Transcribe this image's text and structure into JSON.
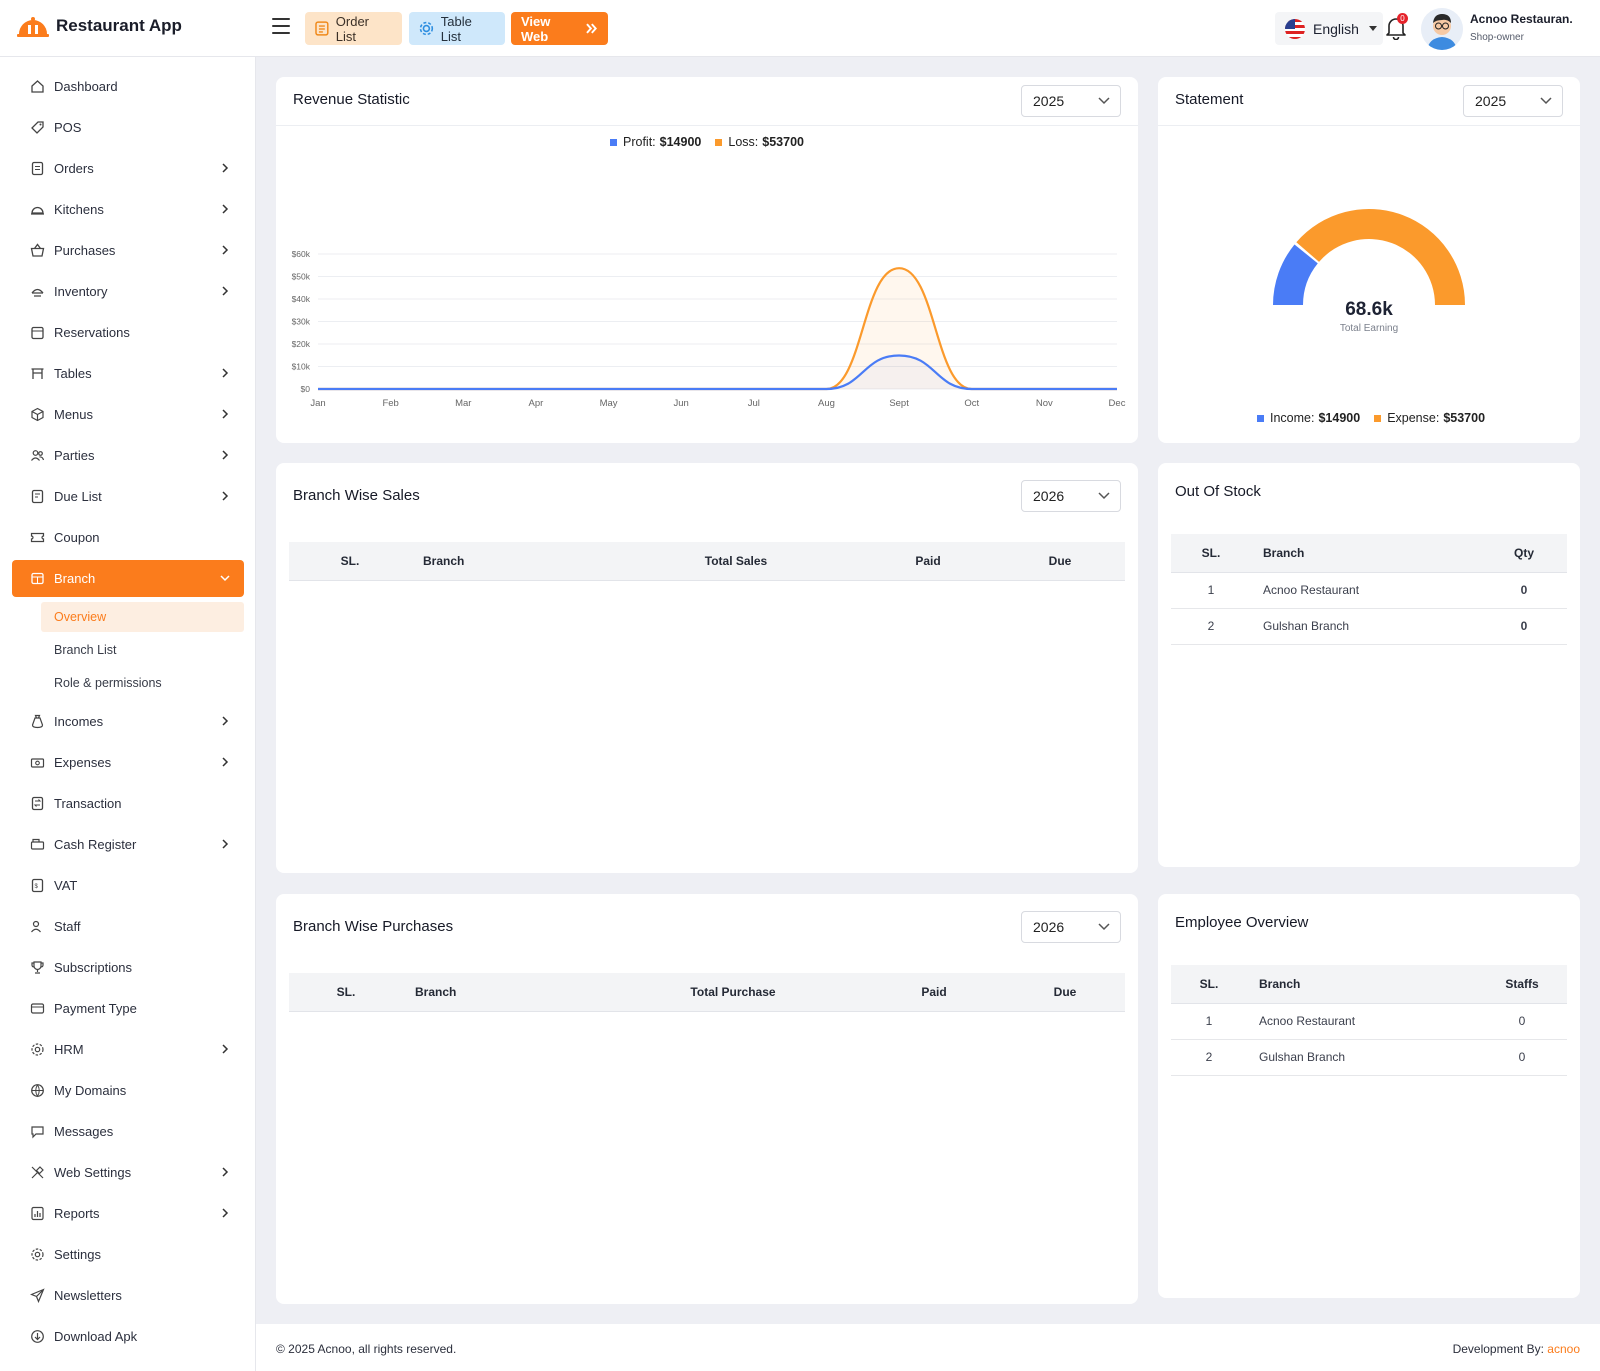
{
  "app": {
    "name": "Restaurant App"
  },
  "header": {
    "order_list": "Order List",
    "table_list": "Table List",
    "view_web": "View Web",
    "language": "English",
    "notification_count": "0",
    "user_name": "Acnoo Restauran.",
    "user_role": "Shop-owner"
  },
  "sidebar": {
    "items": [
      {
        "label": "Dashboard",
        "icon": "dashboard-icon",
        "chevron": false
      },
      {
        "label": "POS",
        "icon": "pos-icon",
        "chevron": false
      },
      {
        "label": "Orders",
        "icon": "orders-icon",
        "chevron": true
      },
      {
        "label": "Kitchens",
        "icon": "kitchen-icon",
        "chevron": true
      },
      {
        "label": "Purchases",
        "icon": "basket-icon",
        "chevron": true
      },
      {
        "label": "Inventory",
        "icon": "inventory-icon",
        "chevron": true
      },
      {
        "label": "Reservations",
        "icon": "calendar-icon",
        "chevron": false
      },
      {
        "label": "Tables",
        "icon": "table-icon",
        "chevron": true
      },
      {
        "label": "Menus",
        "icon": "box-icon",
        "chevron": true
      },
      {
        "label": "Parties",
        "icon": "users-icon",
        "chevron": true
      },
      {
        "label": "Due List",
        "icon": "list-icon",
        "chevron": true
      },
      {
        "label": "Coupon",
        "icon": "coupon-icon",
        "chevron": false
      },
      {
        "label": "Branch",
        "icon": "branch-icon",
        "chevron": true,
        "active": true
      },
      {
        "label": "Incomes",
        "icon": "money-bag-icon",
        "chevron": true
      },
      {
        "label": "Expenses",
        "icon": "cash-icon",
        "chevron": true
      },
      {
        "label": "Transaction",
        "icon": "transaction-icon",
        "chevron": false
      },
      {
        "label": "Cash Register",
        "icon": "register-icon",
        "chevron": true
      },
      {
        "label": "VAT",
        "icon": "vat-icon",
        "chevron": false
      },
      {
        "label": "Staff",
        "icon": "staff-icon",
        "chevron": false
      },
      {
        "label": "Subscriptions",
        "icon": "trophy-icon",
        "chevron": false
      },
      {
        "label": "Payment Type",
        "icon": "payment-icon",
        "chevron": false
      },
      {
        "label": "HRM",
        "icon": "gear-cog-icon",
        "chevron": true
      },
      {
        "label": "My Domains",
        "icon": "globe-icon",
        "chevron": false
      },
      {
        "label": "Messages",
        "icon": "message-icon",
        "chevron": false
      },
      {
        "label": "Web Settings",
        "icon": "tools-icon",
        "chevron": true
      },
      {
        "label": "Reports",
        "icon": "report-icon",
        "chevron": true
      },
      {
        "label": "Settings",
        "icon": "settings-icon",
        "chevron": false
      },
      {
        "label": "Newsletters",
        "icon": "send-icon",
        "chevron": false
      },
      {
        "label": "Download Apk",
        "icon": "download-icon",
        "chevron": false
      }
    ],
    "branch_sub": [
      {
        "label": "Overview",
        "current": true
      },
      {
        "label": "Branch List"
      },
      {
        "label": "Role & permissions"
      }
    ]
  },
  "revenue": {
    "title": "Revenue Statistic",
    "year": "2025",
    "profit_label": "Profit:",
    "profit_value": "$14900",
    "loss_label": "Loss:",
    "loss_value": "$53700"
  },
  "statement": {
    "title": "Statement",
    "year": "2025",
    "total": "68.6k",
    "total_label": "Total Earning",
    "income_label": "Income:",
    "income_value": "$14900",
    "expense_label": "Expense:",
    "expense_value": "$53700",
    "income_amount": 14900,
    "expense_amount": 53700
  },
  "branch_sales": {
    "title": "Branch Wise Sales",
    "year": "2026",
    "columns": [
      "SL.",
      "Branch",
      "Total Sales",
      "Paid",
      "Due"
    ]
  },
  "branch_purchases": {
    "title": "Branch Wise Purchases",
    "year": "2026",
    "columns": [
      "SL.",
      "Branch",
      "Total Purchase",
      "Paid",
      "Due"
    ]
  },
  "out_of_stock": {
    "title": "Out Of Stock",
    "columns": [
      "SL.",
      "Branch",
      "Qty"
    ],
    "rows": [
      {
        "sl": "1",
        "branch": "Acnoo Restaurant",
        "qty": "0"
      },
      {
        "sl": "2",
        "branch": "Gulshan Branch",
        "qty": "0"
      }
    ]
  },
  "employee_overview": {
    "title": "Employee Overview",
    "columns": [
      "SL.",
      "Branch",
      "Staffs"
    ],
    "rows": [
      {
        "sl": "1",
        "branch": "Acnoo Restaurant",
        "staffs": "0"
      },
      {
        "sl": "2",
        "branch": "Gulshan Branch",
        "staffs": "0"
      }
    ]
  },
  "footer": {
    "copyright": "© 2025 Acnoo, all rights reserved.",
    "dev_label": "Development By:",
    "dev_name": "acnoo"
  },
  "colors": {
    "accent": "#fb7c1c",
    "profit": "#4a7cf6",
    "loss": "#fb9a2c"
  },
  "chart_data": {
    "type": "area",
    "categories": [
      "Jan",
      "Feb",
      "Mar",
      "Apr",
      "May",
      "Jun",
      "Jul",
      "Aug",
      "Sept",
      "Oct",
      "Nov",
      "Dec"
    ],
    "series": [
      {
        "name": "Profit",
        "values": [
          0,
          0,
          0,
          0,
          0,
          0,
          0,
          0,
          14900,
          0,
          0,
          0
        ]
      },
      {
        "name": "Loss",
        "values": [
          0,
          0,
          0,
          0,
          0,
          0,
          0,
          0,
          53700,
          0,
          0,
          0
        ]
      }
    ],
    "ylim": [
      0,
      60000
    ],
    "y_ticks": [
      "$0",
      "$10k",
      "$20k",
      "$30k",
      "$40k",
      "$50k",
      "$60k"
    ],
    "y_tick_values": [
      0,
      10000,
      20000,
      30000,
      40000,
      50000,
      60000
    ],
    "grid": true,
    "legend": "top-center"
  }
}
